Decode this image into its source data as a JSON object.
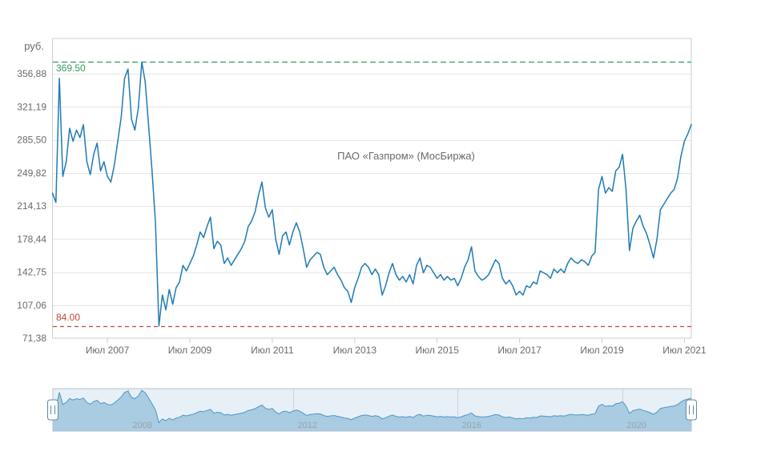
{
  "chart_data": {
    "type": "line",
    "title": "ПАО «Газпром» (МосБиржа)",
    "y_axis": {
      "unit_label": "руб.",
      "tick_labels": [
        "356,88",
        "321,19",
        "285,50",
        "249,82",
        "214,13",
        "178,44",
        "142,75",
        "107,06",
        "71,38"
      ],
      "tick_values": [
        356.88,
        321.19,
        285.5,
        249.82,
        214.13,
        178.44,
        142.75,
        107.06,
        71.38
      ],
      "min": 71.38,
      "max": 395.0,
      "grid": "horizontal"
    },
    "x_axis": {
      "tick_labels": [
        "Июл 2007",
        "Июл 2009",
        "Июл 2011",
        "Июл 2013",
        "Июл 2015",
        "Июл 2017",
        "Июл 2019",
        "Июл 2021"
      ],
      "tick_indices": [
        16,
        40,
        64,
        88,
        112,
        136,
        160,
        184
      ],
      "start_period": "Мар 2006",
      "end_period": "Сен 2021"
    },
    "plot_lines": [
      {
        "value": 369.5,
        "label": "369.50",
        "color": "#2f9e5e",
        "dash": "7,4"
      },
      {
        "value": 84.0,
        "label": "84.00",
        "color": "#c2453a",
        "dash": "5,4"
      }
    ],
    "series": {
      "color": "#1f7ab5",
      "points_per_month": 1,
      "values": [
        228,
        218,
        352,
        246,
        262,
        298,
        284,
        296,
        288,
        302,
        262,
        248,
        270,
        282,
        252,
        262,
        246,
        240,
        258,
        284,
        310,
        352,
        362,
        308,
        296,
        320,
        369.5,
        348,
        300,
        252,
        196,
        84.5,
        118,
        102,
        124,
        108,
        126,
        132,
        150,
        144,
        152,
        160,
        172,
        186,
        180,
        192,
        202,
        168,
        176,
        172,
        152,
        158,
        150,
        156,
        162,
        168,
        176,
        192,
        198,
        208,
        226,
        240,
        212,
        202,
        210,
        178,
        162,
        182,
        186,
        172,
        186,
        196,
        186,
        168,
        148,
        156,
        160,
        164,
        162,
        148,
        140,
        144,
        148,
        140,
        134,
        126,
        122,
        110,
        126,
        136,
        148,
        152,
        148,
        140,
        146,
        140,
        118,
        128,
        142,
        152,
        140,
        134,
        138,
        132,
        140,
        130,
        150,
        158,
        142,
        150,
        148,
        142,
        136,
        140,
        134,
        138,
        134,
        136,
        128,
        136,
        148,
        156,
        170,
        144,
        138,
        134,
        136,
        140,
        148,
        156,
        152,
        136,
        130,
        134,
        128,
        118,
        122,
        118,
        128,
        126,
        132,
        130,
        144,
        142,
        140,
        136,
        146,
        142,
        146,
        142,
        152,
        158,
        154,
        152,
        156,
        154,
        150,
        160,
        164,
        232,
        246,
        228,
        234,
        230,
        252,
        256,
        270,
        232,
        166,
        190,
        198,
        204,
        192,
        184,
        172,
        158,
        178,
        210,
        216,
        222,
        228,
        232,
        244,
        268,
        284,
        292,
        302
      ]
    },
    "navigator": {
      "year_labels": [
        {
          "label": "2008",
          "index": 22
        },
        {
          "label": "2012",
          "index": 70
        },
        {
          "label": "2016",
          "index": 118
        },
        {
          "label": "2020",
          "index": 166
        }
      ],
      "colors": {
        "background": "#e8f0f7",
        "area_fill": "#a9cce3",
        "line": "#4f94c4",
        "outline": "#b7c0c8",
        "handle_border": "#5f87a8"
      },
      "value_range": [
        10,
        370
      ]
    }
  }
}
